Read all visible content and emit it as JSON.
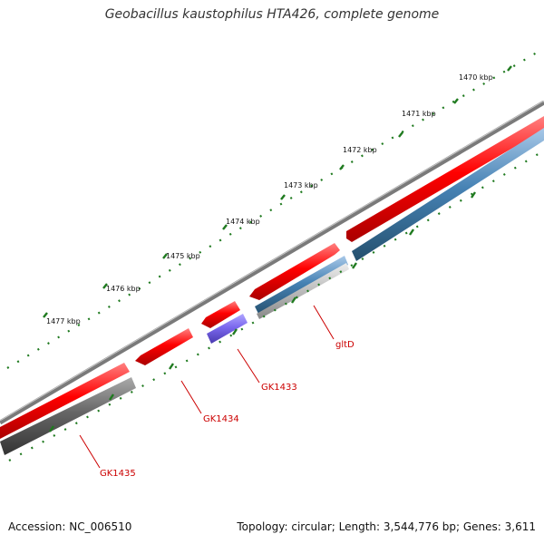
{
  "title": "Geobacillus kaustophilus HTA426, complete genome",
  "footer": {
    "accession": "Accession: NC_006510",
    "summary": "Topology: circular; Length: 3,544,776 bp; Genes: 3,611"
  },
  "ticks": [
    {
      "label": "1470 kbp"
    },
    {
      "label": "1471 kbp"
    },
    {
      "label": "1472 kbp"
    },
    {
      "label": "1473 kbp"
    },
    {
      "label": "1474 kbp"
    },
    {
      "label": "1475 kbp"
    },
    {
      "label": "1476 kbp"
    },
    {
      "label": "1477 kbp"
    }
  ],
  "genes": [
    {
      "label": "gltD"
    },
    {
      "label": "GK1433"
    },
    {
      "label": "GK1434"
    },
    {
      "label": "GK1435"
    }
  ],
  "colors": {
    "backbone": "#808080",
    "cds": "#ff0000",
    "gene_grey": "#666666",
    "gene_blue": "#4682b4",
    "gene_purple": "#7b68ee",
    "gene_silver": "#bbbbbb",
    "tick": "#1f7a1f",
    "label": "#cc0000"
  }
}
